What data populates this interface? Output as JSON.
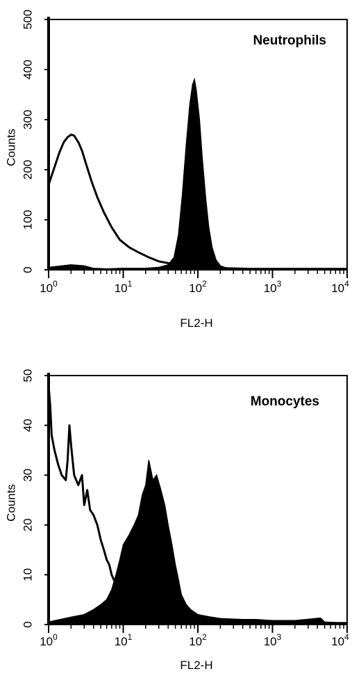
{
  "chart_data": [
    {
      "type": "area",
      "title": "Neutrophils",
      "xlabel": "FL2-H",
      "ylabel": "Counts",
      "x_scale": "log",
      "xlim": [
        1,
        10000
      ],
      "ylim": [
        0,
        500
      ],
      "x_ticks": [
        1,
        10,
        100,
        1000,
        10000
      ],
      "x_tick_labels": [
        {
          "base": "10",
          "exp": "0"
        },
        {
          "base": "10",
          "exp": "1"
        },
        {
          "base": "10",
          "exp": "2"
        },
        {
          "base": "10",
          "exp": "3"
        },
        {
          "base": "10",
          "exp": "4"
        }
      ],
      "y_ticks": [
        "0",
        "100",
        "200",
        "300",
        "400",
        "500"
      ],
      "grid": false,
      "series": [
        {
          "style": "outline",
          "points": [
            [
              1,
              170
            ],
            [
              1.2,
              205
            ],
            [
              1.4,
              235
            ],
            [
              1.6,
              255
            ],
            [
              1.8,
              265
            ],
            [
              2.0,
              270
            ],
            [
              2.2,
              268
            ],
            [
              2.5,
              255
            ],
            [
              2.8,
              238
            ],
            [
              3.2,
              210
            ],
            [
              3.8,
              175
            ],
            [
              4.5,
              145
            ],
            [
              5.5,
              115
            ],
            [
              7,
              85
            ],
            [
              9,
              60
            ],
            [
              12,
              45
            ],
            [
              16,
              35
            ],
            [
              22,
              25
            ],
            [
              30,
              17
            ],
            [
              38,
              14
            ],
            [
              45,
              12
            ],
            [
              55,
              14
            ],
            [
              70,
              20
            ],
            [
              85,
              24
            ],
            [
              100,
              20
            ],
            [
              130,
              10
            ],
            [
              170,
              5
            ],
            [
              250,
              3
            ],
            [
              500,
              2
            ],
            [
              1000,
              2
            ],
            [
              3000,
              2
            ],
            [
              10000,
              2
            ]
          ]
        },
        {
          "style": "filled",
          "points": [
            [
              1,
              5
            ],
            [
              2,
              10
            ],
            [
              3,
              8
            ],
            [
              4,
              3
            ],
            [
              6,
              2
            ],
            [
              10,
              3
            ],
            [
              20,
              3
            ],
            [
              30,
              5
            ],
            [
              40,
              10
            ],
            [
              48,
              25
            ],
            [
              55,
              70
            ],
            [
              62,
              150
            ],
            [
              70,
              250
            ],
            [
              78,
              330
            ],
            [
              85,
              370
            ],
            [
              90,
              380
            ],
            [
              95,
              360
            ],
            [
              105,
              300
            ],
            [
              115,
              220
            ],
            [
              128,
              140
            ],
            [
              140,
              85
            ],
            [
              155,
              45
            ],
            [
              175,
              20
            ],
            [
              200,
              8
            ],
            [
              250,
              3
            ],
            [
              400,
              2
            ],
            [
              1000,
              2
            ],
            [
              3000,
              2
            ],
            [
              10000,
              2
            ]
          ]
        }
      ]
    },
    {
      "type": "area",
      "title": "Monocytes",
      "xlabel": "FL2-H",
      "ylabel": "Counts",
      "x_scale": "log",
      "xlim": [
        1,
        10000
      ],
      "ylim": [
        0,
        50
      ],
      "x_ticks": [
        1,
        10,
        100,
        1000,
        10000
      ],
      "x_tick_labels": [
        {
          "base": "10",
          "exp": "0"
        },
        {
          "base": "10",
          "exp": "1"
        },
        {
          "base": "10",
          "exp": "2"
        },
        {
          "base": "10",
          "exp": "3"
        },
        {
          "base": "10",
          "exp": "4"
        }
      ],
      "y_ticks": [
        "0",
        "10",
        "20",
        "30",
        "40",
        "50"
      ],
      "grid": false,
      "series": [
        {
          "style": "outline",
          "points": [
            [
              1,
              48
            ],
            [
              1.05,
              44
            ],
            [
              1.1,
              38
            ],
            [
              1.2,
              35
            ],
            [
              1.35,
              32
            ],
            [
              1.5,
              30
            ],
            [
              1.7,
              29
            ],
            [
              1.8,
              33
            ],
            [
              1.9,
              40
            ],
            [
              2.0,
              36
            ],
            [
              2.2,
              30
            ],
            [
              2.5,
              28
            ],
            [
              2.8,
              30
            ],
            [
              3.0,
              24
            ],
            [
              3.3,
              27
            ],
            [
              3.6,
              23
            ],
            [
              4.0,
              22
            ],
            [
              4.5,
              20
            ],
            [
              5.0,
              17
            ],
            [
              5.5,
              15
            ],
            [
              6.0,
              13
            ],
            [
              6.5,
              12
            ],
            [
              7.0,
              10
            ],
            [
              8.0,
              8
            ],
            [
              9.0,
              6
            ],
            [
              10,
              4
            ],
            [
              11,
              3
            ],
            [
              15,
              2
            ],
            [
              20,
              1.5
            ],
            [
              30,
              1
            ],
            [
              50,
              1
            ],
            [
              100,
              0.8
            ],
            [
              200,
              0.8
            ],
            [
              500,
              0.5
            ],
            [
              1000,
              0.5
            ],
            [
              3000,
              0.3
            ],
            [
              10000,
              0.3
            ]
          ]
        },
        {
          "style": "filled",
          "points": [
            [
              1,
              0.5
            ],
            [
              2,
              1.5
            ],
            [
              3,
              2
            ],
            [
              4,
              3
            ],
            [
              5,
              4
            ],
            [
              6,
              5
            ],
            [
              7,
              7
            ],
            [
              8,
              10
            ],
            [
              9,
              13
            ],
            [
              10,
              16
            ],
            [
              12,
              18
            ],
            [
              14,
              20
            ],
            [
              16,
              22
            ],
            [
              18,
              26
            ],
            [
              20,
              28
            ],
            [
              22,
              33
            ],
            [
              25,
              29
            ],
            [
              28,
              30
            ],
            [
              32,
              27
            ],
            [
              36,
              24
            ],
            [
              40,
              20
            ],
            [
              45,
              16
            ],
            [
              50,
              12
            ],
            [
              55,
              9
            ],
            [
              60,
              6
            ],
            [
              70,
              4
            ],
            [
              80,
              3
            ],
            [
              100,
              2
            ],
            [
              150,
              1.5
            ],
            [
              200,
              1.2
            ],
            [
              400,
              1
            ],
            [
              600,
              1
            ],
            [
              1000,
              0.8
            ],
            [
              2000,
              0.8
            ],
            [
              4400,
              1.3
            ],
            [
              5000,
              0.5
            ],
            [
              10000,
              0.3
            ]
          ]
        }
      ]
    }
  ]
}
